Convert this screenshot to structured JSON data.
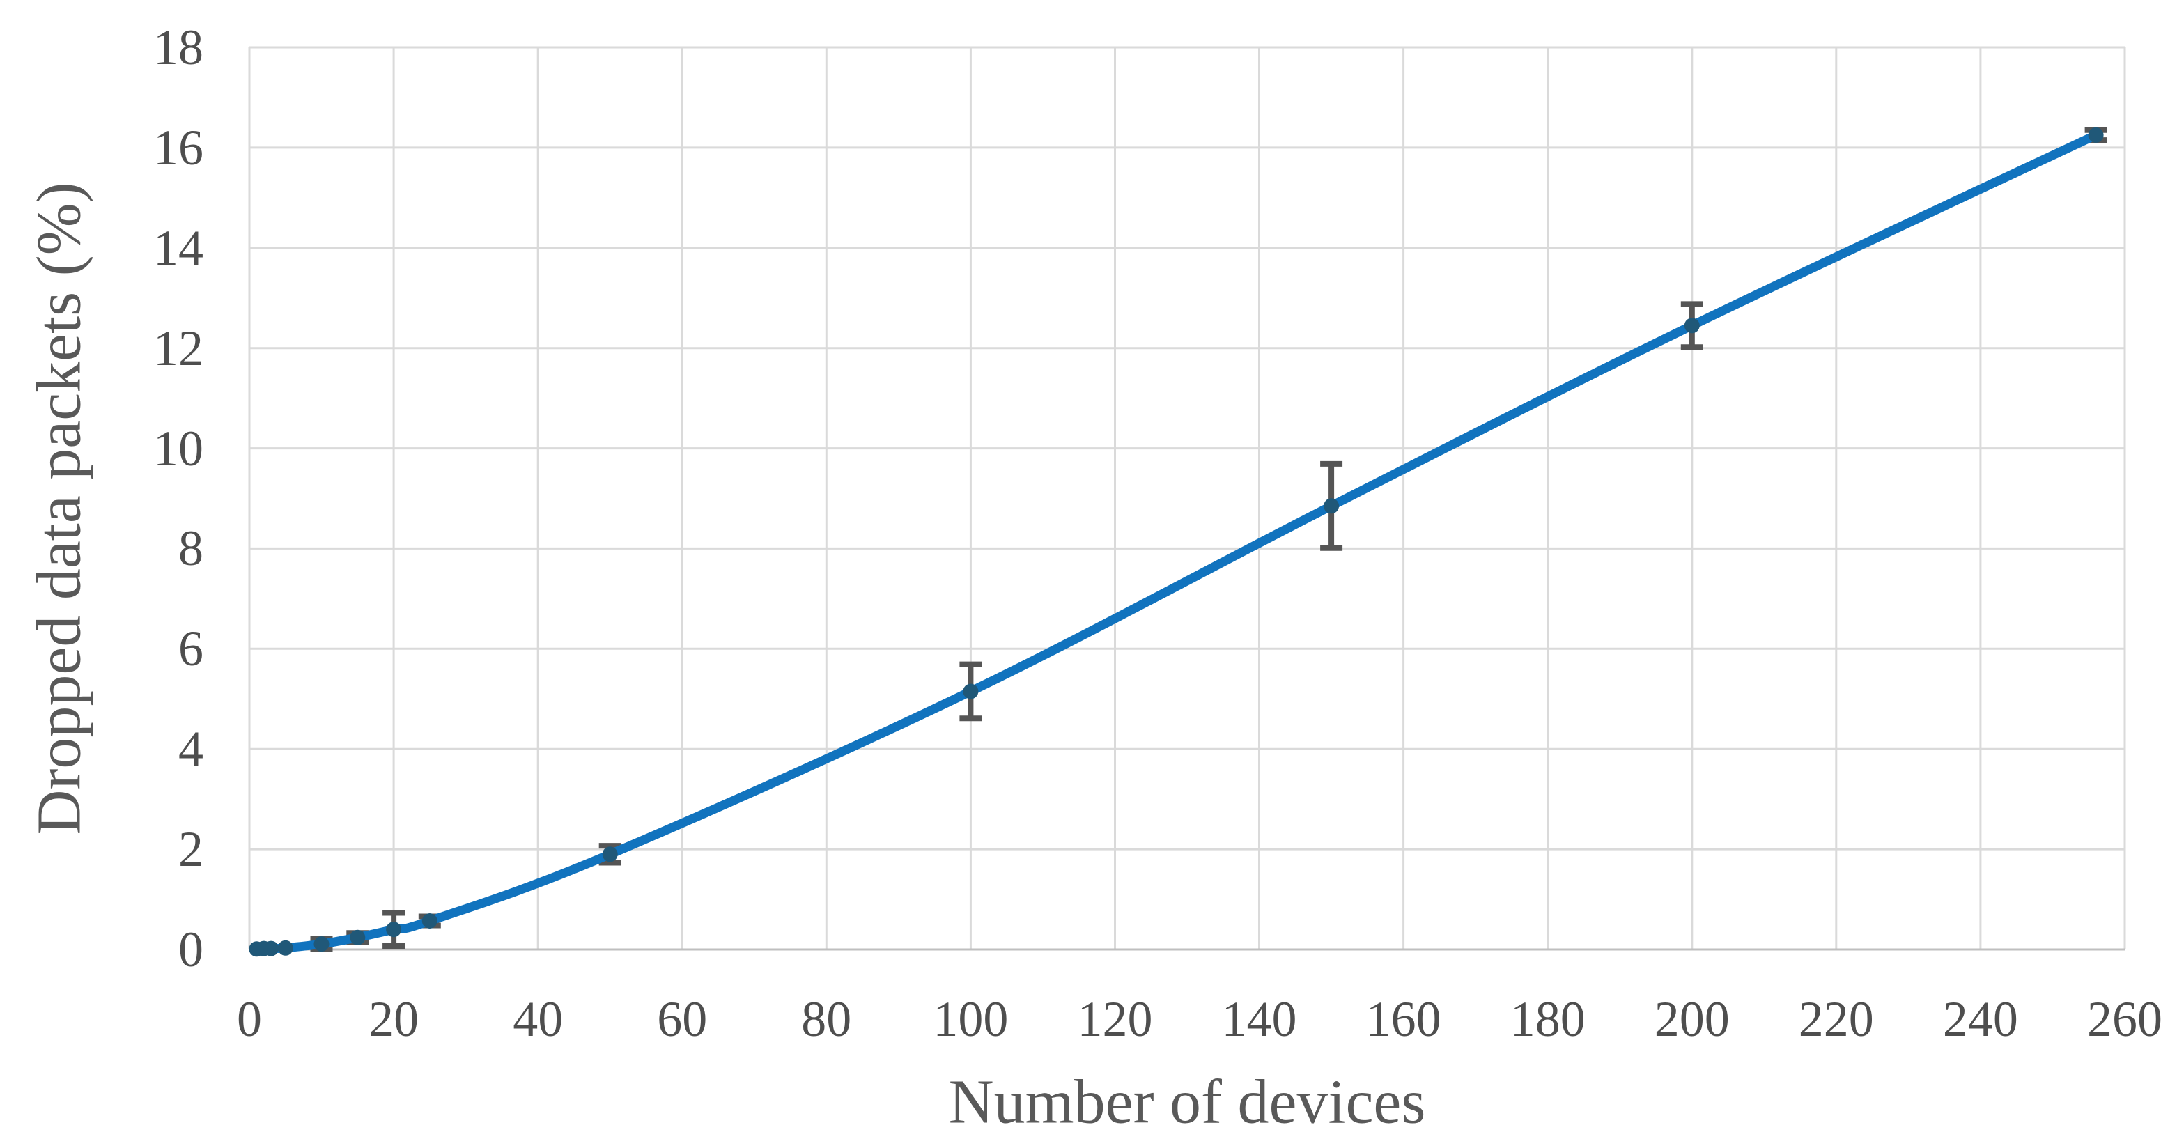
{
  "chart_data": {
    "type": "line",
    "title": "",
    "xlabel": "Number of devices",
    "ylabel": "Dropped data packets (%)",
    "xlim": [
      0,
      260
    ],
    "ylim": [
      0,
      18
    ],
    "x_ticks": [
      0,
      20,
      40,
      60,
      80,
      100,
      120,
      140,
      160,
      180,
      200,
      220,
      240,
      260
    ],
    "y_ticks": [
      0,
      2,
      4,
      6,
      8,
      10,
      12,
      14,
      16,
      18
    ],
    "grid": true,
    "legend": "none",
    "series": [
      {
        "name": "Dropped data packets",
        "smoothed": true,
        "x": [
          1,
          2,
          3,
          5,
          10,
          15,
          20,
          25,
          50,
          100,
          150,
          200,
          256
        ],
        "y": [
          0.01,
          0.02,
          0.02,
          0.03,
          0.11,
          0.24,
          0.4,
          0.57,
          1.9,
          5.15,
          8.85,
          12.45,
          16.25
        ],
        "yerr": [
          0,
          0,
          0,
          0.01,
          0.1,
          0.09,
          0.33,
          0.09,
          0.17,
          0.54,
          0.84,
          0.43,
          0.1
        ]
      }
    ],
    "style": {
      "line_color": "#1173BE",
      "marker_color": "#205878",
      "errorbar_color": "#555555",
      "gridline_color": "#DADADA",
      "axisline_color": "#BFBFBF",
      "tick_label_color": "#4e4e4e",
      "axis_title_color": "#595959",
      "background": "#ffffff"
    }
  }
}
